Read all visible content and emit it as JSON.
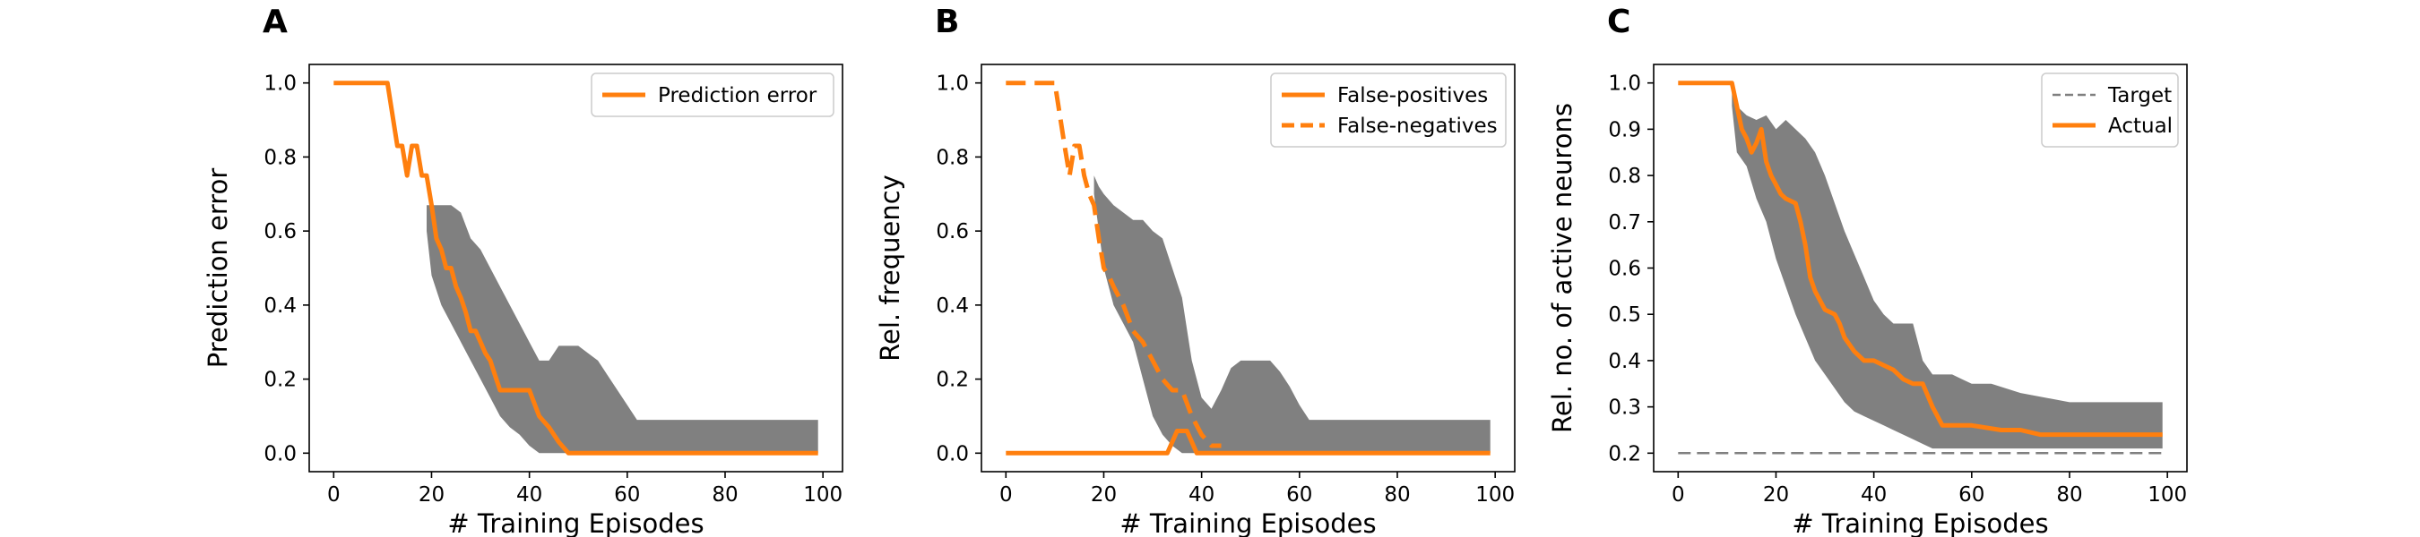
{
  "chart_data": [
    {
      "panel_label": "A",
      "type": "line",
      "xlabel": "# Training Episodes",
      "ylabel": "Prediction error",
      "xlim": [
        -5,
        104
      ],
      "ylim": [
        -0.05,
        1.05
      ],
      "xticks": [
        0,
        20,
        40,
        60,
        80,
        100
      ],
      "yticks": [
        0.0,
        0.2,
        0.4,
        0.6,
        0.8,
        1.0
      ],
      "ytick_labels": [
        "0.0",
        "0.2",
        "0.4",
        "0.6",
        "0.8",
        "1.0"
      ],
      "legend_position": "top-right",
      "band": {
        "color": "#808080",
        "x": [
          19,
          20,
          22,
          24,
          26,
          28,
          30,
          32,
          34,
          36,
          38,
          40,
          42,
          44,
          46,
          48,
          50,
          52,
          54,
          56,
          58,
          60,
          62,
          64,
          66,
          70,
          80,
          90,
          99
        ],
        "upper": [
          0.67,
          0.67,
          0.67,
          0.67,
          0.65,
          0.58,
          0.55,
          0.5,
          0.45,
          0.4,
          0.35,
          0.3,
          0.25,
          0.25,
          0.29,
          0.29,
          0.29,
          0.27,
          0.25,
          0.21,
          0.17,
          0.13,
          0.09,
          0.09,
          0.09,
          0.09,
          0.09,
          0.09,
          0.09
        ],
        "lower": [
          0.6,
          0.48,
          0.4,
          0.35,
          0.3,
          0.25,
          0.2,
          0.15,
          0.1,
          0.07,
          0.05,
          0.02,
          0.0,
          0.0,
          0.0,
          0.0,
          0.0,
          0.0,
          0.0,
          0.0,
          0.0,
          0.0,
          0.0,
          0.0,
          0.0,
          0.0,
          0.0,
          0.0,
          0.0
        ]
      },
      "series": [
        {
          "name": "Prediction error",
          "color": "#ff7f0e",
          "style": "solid",
          "x": [
            0,
            11,
            13,
            14,
            15,
            16,
            17,
            18,
            19,
            20,
            21,
            22,
            23,
            24,
            25,
            26,
            27,
            28,
            29,
            30,
            31,
            32,
            33,
            34,
            35,
            36,
            38,
            40,
            42,
            44,
            46,
            48,
            60,
            80,
            99
          ],
          "y": [
            1.0,
            1.0,
            0.83,
            0.83,
            0.75,
            0.83,
            0.83,
            0.75,
            0.75,
            0.67,
            0.58,
            0.55,
            0.5,
            0.5,
            0.45,
            0.42,
            0.38,
            0.33,
            0.33,
            0.3,
            0.27,
            0.25,
            0.21,
            0.17,
            0.17,
            0.17,
            0.17,
            0.17,
            0.1,
            0.07,
            0.03,
            0.0,
            0.0,
            0.0,
            0.0
          ]
        }
      ]
    },
    {
      "panel_label": "B",
      "type": "line",
      "xlabel": "# Training Episodes",
      "ylabel": "Rel. frequency",
      "xlim": [
        -5,
        104
      ],
      "ylim": [
        -0.05,
        1.05
      ],
      "xticks": [
        0,
        20,
        40,
        60,
        80,
        100
      ],
      "yticks": [
        0.0,
        0.2,
        0.4,
        0.6,
        0.8,
        1.0
      ],
      "ytick_labels": [
        "0.0",
        "0.2",
        "0.4",
        "0.6",
        "0.8",
        "1.0"
      ],
      "legend_position": "top-right",
      "band": {
        "color": "#808080",
        "x": [
          18,
          19,
          20,
          22,
          24,
          26,
          28,
          30,
          32,
          34,
          36,
          38,
          40,
          42,
          44,
          46,
          48,
          50,
          52,
          54,
          56,
          58,
          60,
          62,
          64,
          66,
          70,
          80,
          90,
          99
        ],
        "upper": [
          0.75,
          0.72,
          0.7,
          0.67,
          0.65,
          0.63,
          0.63,
          0.6,
          0.58,
          0.5,
          0.42,
          0.25,
          0.15,
          0.12,
          0.17,
          0.23,
          0.25,
          0.25,
          0.25,
          0.25,
          0.22,
          0.18,
          0.13,
          0.09,
          0.09,
          0.09,
          0.09,
          0.09,
          0.09,
          0.09
        ],
        "lower": [
          0.7,
          0.6,
          0.5,
          0.4,
          0.35,
          0.3,
          0.2,
          0.1,
          0.05,
          0.02,
          0.0,
          0.0,
          0.0,
          0.0,
          0.0,
          0.0,
          0.0,
          0.0,
          0.0,
          0.0,
          0.0,
          0.0,
          0.0,
          0.0,
          0.0,
          0.0,
          0.0,
          0.0,
          0.0,
          0.0
        ]
      },
      "series": [
        {
          "name": "False-positives",
          "color": "#ff7f0e",
          "style": "solid",
          "x": [
            0,
            33,
            35,
            37,
            39,
            40,
            60,
            80,
            99
          ],
          "y": [
            0.0,
            0.0,
            0.06,
            0.06,
            0.0,
            0.0,
            0.0,
            0.0,
            0.0
          ]
        },
        {
          "name": "False-negatives",
          "color": "#ff7f0e",
          "style": "dashed",
          "x": [
            0,
            10,
            12,
            13,
            14,
            15,
            16,
            17,
            18,
            19,
            20,
            21,
            22,
            24,
            26,
            28,
            30,
            32,
            34,
            36,
            38,
            40,
            42,
            44
          ],
          "y": [
            1.0,
            1.0,
            0.83,
            0.75,
            0.83,
            0.83,
            0.75,
            0.7,
            0.67,
            0.58,
            0.5,
            0.48,
            0.45,
            0.4,
            0.33,
            0.3,
            0.25,
            0.2,
            0.17,
            0.17,
            0.1,
            0.05,
            0.02,
            0.02
          ]
        }
      ]
    },
    {
      "panel_label": "C",
      "type": "line",
      "xlabel": "# Training Episodes",
      "ylabel": "Rel. no. of active neurons",
      "xlim": [
        -5,
        104
      ],
      "ylim": [
        0.16,
        1.04
      ],
      "xticks": [
        0,
        20,
        40,
        60,
        80,
        100
      ],
      "yticks": [
        0.2,
        0.3,
        0.4,
        0.5,
        0.6,
        0.7,
        0.8,
        0.9,
        1.0
      ],
      "ytick_labels": [
        "0.2",
        "0.3",
        "0.4",
        "0.5",
        "0.6",
        "0.7",
        "0.8",
        "0.9",
        "1.0"
      ],
      "legend_position": "top-right",
      "band": {
        "color": "#808080",
        "x": [
          11,
          12,
          14,
          16,
          18,
          20,
          22,
          24,
          26,
          28,
          30,
          32,
          34,
          36,
          38,
          40,
          42,
          44,
          46,
          48,
          50,
          52,
          54,
          56,
          58,
          60,
          64,
          70,
          80,
          90,
          99
        ],
        "upper": [
          1.0,
          0.95,
          0.93,
          0.92,
          0.93,
          0.9,
          0.92,
          0.9,
          0.88,
          0.85,
          0.8,
          0.74,
          0.68,
          0.63,
          0.58,
          0.53,
          0.5,
          0.48,
          0.48,
          0.48,
          0.4,
          0.37,
          0.37,
          0.37,
          0.36,
          0.35,
          0.35,
          0.33,
          0.31,
          0.31,
          0.31
        ],
        "lower": [
          0.95,
          0.85,
          0.82,
          0.75,
          0.7,
          0.62,
          0.56,
          0.5,
          0.45,
          0.4,
          0.37,
          0.34,
          0.31,
          0.29,
          0.28,
          0.27,
          0.26,
          0.25,
          0.24,
          0.23,
          0.22,
          0.21,
          0.21,
          0.21,
          0.21,
          0.21,
          0.21,
          0.21,
          0.21,
          0.21,
          0.21
        ]
      },
      "series": [
        {
          "name": "Target",
          "color": "#808080",
          "style": "dashed-thin",
          "x": [
            0,
            99
          ],
          "y": [
            0.2,
            0.2
          ]
        },
        {
          "name": "Actual",
          "color": "#ff7f0e",
          "style": "solid",
          "x": [
            0,
            11,
            13,
            14,
            15,
            16,
            17,
            18,
            19,
            20,
            21,
            22,
            24,
            25,
            26,
            27,
            28,
            30,
            32,
            33,
            34,
            36,
            38,
            40,
            42,
            44,
            46,
            48,
            50,
            52,
            54,
            56,
            60,
            66,
            70,
            74,
            80,
            90,
            99
          ],
          "y": [
            1.0,
            1.0,
            0.9,
            0.88,
            0.85,
            0.87,
            0.9,
            0.83,
            0.8,
            0.78,
            0.76,
            0.75,
            0.74,
            0.7,
            0.65,
            0.58,
            0.55,
            0.51,
            0.5,
            0.48,
            0.45,
            0.42,
            0.4,
            0.4,
            0.39,
            0.38,
            0.36,
            0.35,
            0.35,
            0.3,
            0.26,
            0.26,
            0.26,
            0.25,
            0.25,
            0.24,
            0.24,
            0.24,
            0.24
          ]
        }
      ]
    }
  ]
}
